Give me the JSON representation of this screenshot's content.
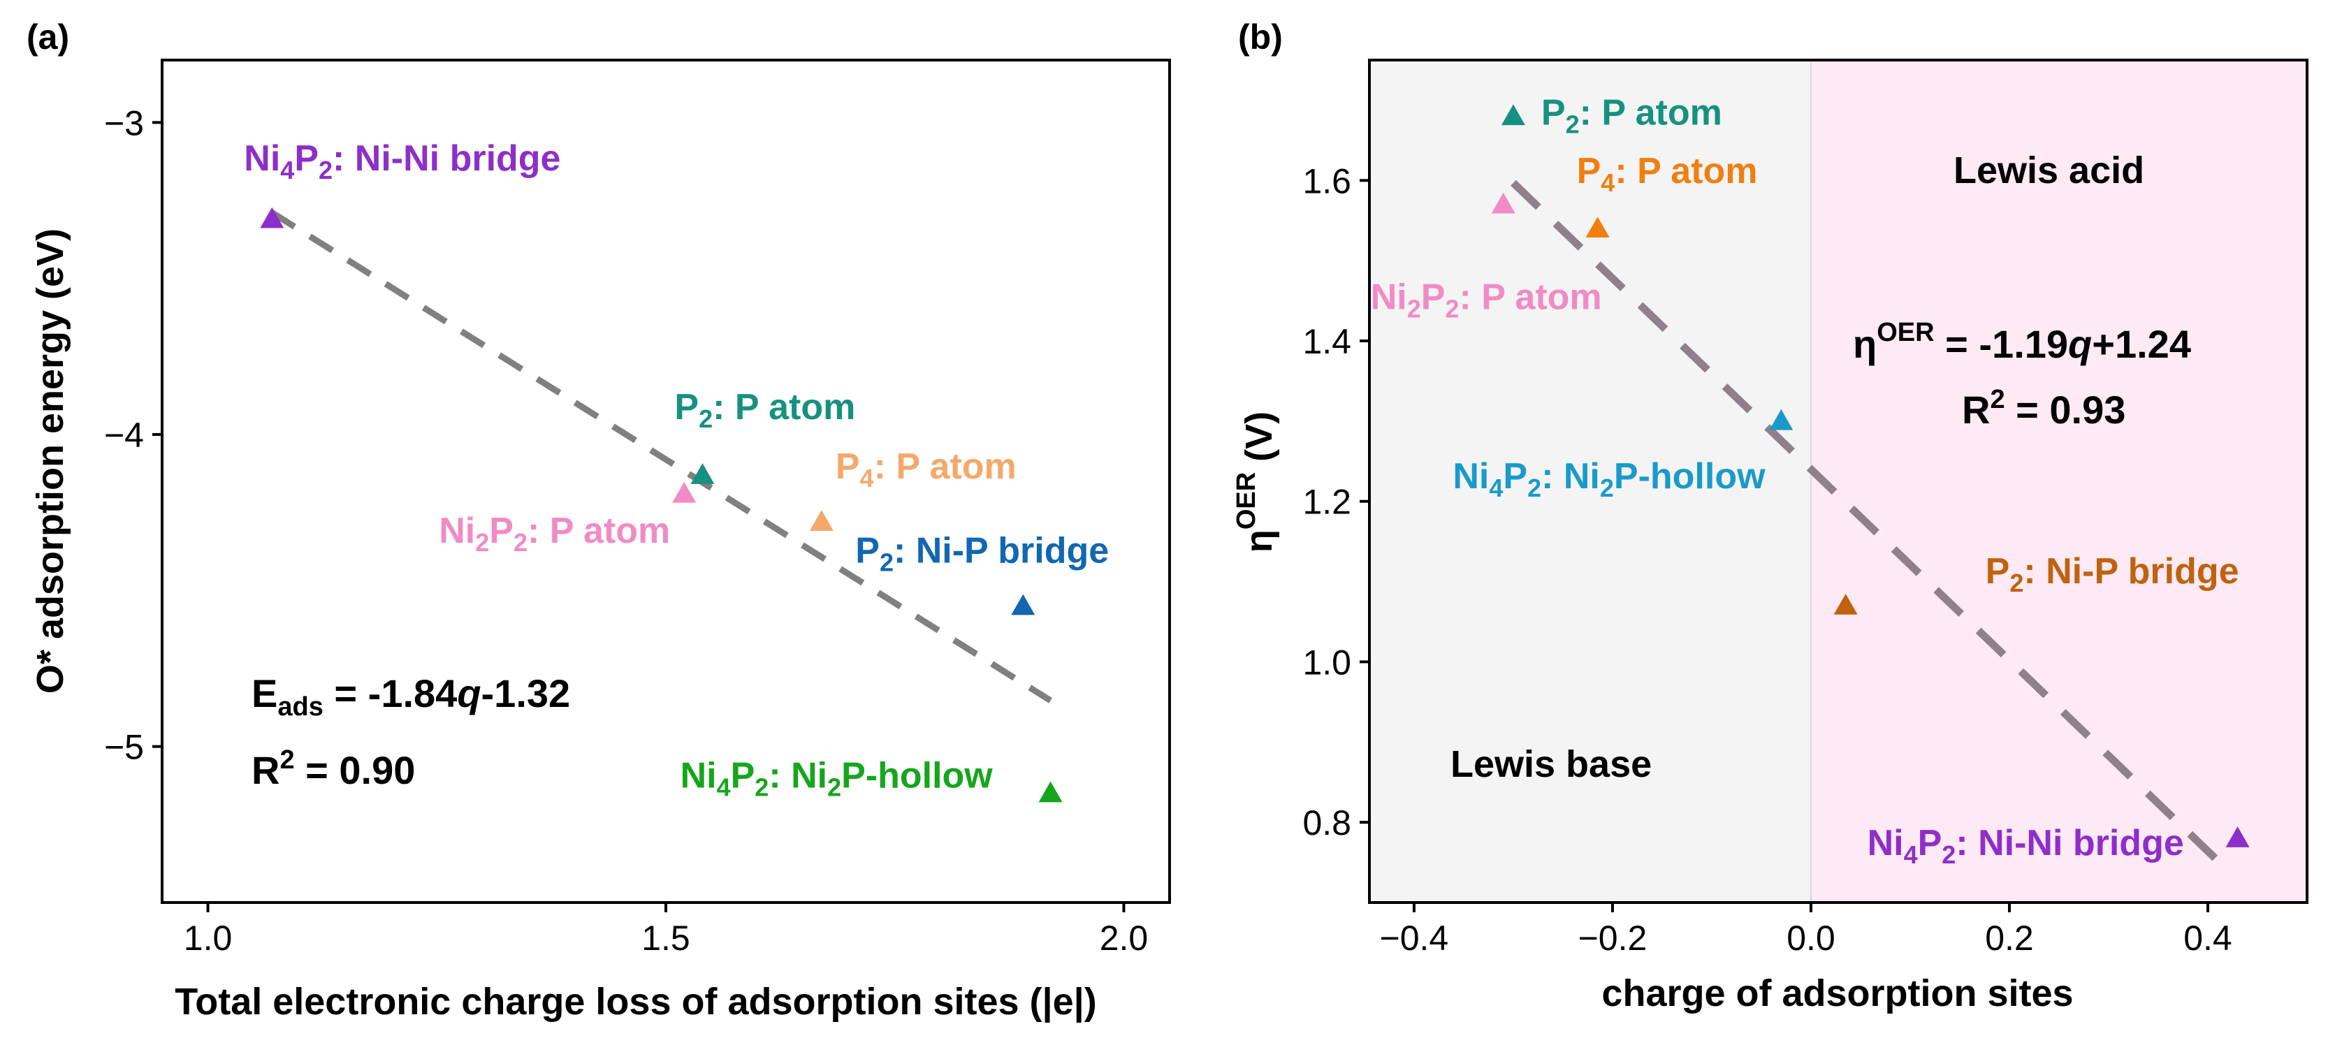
{
  "panels": {
    "a": {
      "label": "(a)",
      "equation": {
        "prefix": "E",
        "sub": "ads",
        "text": " = -1.84",
        "italic": "q",
        "suffix": "-1.32"
      },
      "r2": {
        "prefix": "R",
        "sup": "2",
        "text": " = 0.90"
      }
    },
    "b": {
      "label": "(b)",
      "equation": {
        "prefix": "η",
        "sup": "OER",
        "text": " = -1.19",
        "italic": "q",
        "suffix": "+1.24"
      },
      "r2": {
        "prefix": "R",
        "sup": "2",
        "text": " = 0.93"
      },
      "regions": {
        "left": "Lewis base",
        "right": "Lewis acid"
      }
    }
  },
  "chart_data": [
    {
      "type": "scatter",
      "panel": "a",
      "xlabel": "Total electronic charge loss of adsorption sites (|e|)",
      "ylabel": "O* adsorption energy (eV)",
      "xlim": [
        0.95,
        2.05
      ],
      "ylim": [
        -5.5,
        -2.8
      ],
      "xticks": [
        "1.0",
        "1.5",
        "2.0"
      ],
      "xtick_values": [
        1.0,
        1.5,
        2.0
      ],
      "yticks": [
        "−3",
        "−4",
        "−5"
      ],
      "ytick_values": [
        -3,
        -4,
        -5
      ],
      "points": [
        {
          "name": "Ni4P2: Ni-Ni bridge",
          "x": 1.07,
          "y": -3.31,
          "color": "#8e2ec8",
          "label": {
            "parts": [
              {
                "t": "Ni"
              },
              {
                "t": "4",
                "sub": true
              },
              {
                "t": "P"
              },
              {
                "t": "2",
                "sub": true
              },
              {
                "t": ": Ni-Ni bridge"
              }
            ]
          }
        },
        {
          "name": "P2: P atom",
          "x": 1.54,
          "y": -4.13,
          "color": "#17917f",
          "label": {
            "parts": [
              {
                "t": "P"
              },
              {
                "t": "2",
                "sub": true
              },
              {
                "t": ": P atom"
              }
            ]
          }
        },
        {
          "name": "Ni2P2: P atom",
          "x": 1.52,
          "y": -4.19,
          "color": "#f08bc5",
          "label": {
            "parts": [
              {
                "t": "Ni"
              },
              {
                "t": "2",
                "sub": true
              },
              {
                "t": "P"
              },
              {
                "t": "2",
                "sub": true
              },
              {
                "t": ": P atom"
              }
            ]
          }
        },
        {
          "name": "P4: P atom",
          "x": 1.67,
          "y": -4.28,
          "color": "#f5a86a",
          "label": {
            "parts": [
              {
                "t": "P"
              },
              {
                "t": "4",
                "sub": true
              },
              {
                "t": ": P atom"
              }
            ]
          }
        },
        {
          "name": "P2: Ni-P bridge",
          "x": 1.89,
          "y": -4.55,
          "color": "#1167b1",
          "label": {
            "parts": [
              {
                "t": "P"
              },
              {
                "t": "2",
                "sub": true
              },
              {
                "t": ": Ni-P bridge"
              }
            ]
          }
        },
        {
          "name": "Ni4P2: Ni2P-hollow",
          "x": 1.92,
          "y": -5.15,
          "color": "#16a51c",
          "label": {
            "parts": [
              {
                "t": "Ni"
              },
              {
                "t": "4",
                "sub": true
              },
              {
                "t": "P"
              },
              {
                "t": "2",
                "sub": true
              },
              {
                "t": ": Ni"
              },
              {
                "t": "2",
                "sub": true
              },
              {
                "t": "P-hollow"
              }
            ]
          }
        }
      ],
      "fit": {
        "slope": -1.84,
        "intercept": -1.32,
        "x_range": [
          1.07,
          1.92
        ],
        "color": "#808080"
      }
    },
    {
      "type": "scatter",
      "panel": "b",
      "xlabel": "charge of adsorption sites",
      "ylabel": "η^OER (V)",
      "ylabel_parts": {
        "prefix": "η",
        "sup": "OER",
        "suffix": " (V)"
      },
      "xlim": [
        -0.445,
        0.5
      ],
      "ylim": [
        0.7,
        1.75
      ],
      "xticks": [
        "−0.4",
        "−0.2",
        "0.0",
        "0.2",
        "0.4"
      ],
      "xtick_values": [
        -0.4,
        -0.2,
        0.0,
        0.2,
        0.4
      ],
      "yticks": [
        "0.8",
        "1.0",
        "1.2",
        "1.4",
        "1.6"
      ],
      "ytick_values": [
        0.8,
        1.0,
        1.2,
        1.4,
        1.6
      ],
      "points": [
        {
          "name": "P2: P atom",
          "x": -0.3,
          "y": 1.68,
          "color": "#17917f",
          "label": {
            "parts": [
              {
                "t": "P"
              },
              {
                "t": "2",
                "sub": true
              },
              {
                "t": ": P atom"
              }
            ]
          }
        },
        {
          "name": "Ni2P2: P atom",
          "x": -0.31,
          "y": 1.57,
          "color": "#f08bc5",
          "label": {
            "parts": [
              {
                "t": "Ni"
              },
              {
                "t": "2",
                "sub": true
              },
              {
                "t": "P"
              },
              {
                "t": "2",
                "sub": true
              },
              {
                "t": ": P atom"
              }
            ]
          }
        },
        {
          "name": "P4: P atom",
          "x": -0.215,
          "y": 1.54,
          "color": "#f07f10",
          "label": {
            "parts": [
              {
                "t": "P"
              },
              {
                "t": "4",
                "sub": true
              },
              {
                "t": ": P atom"
              }
            ]
          }
        },
        {
          "name": "Ni4P2: Ni2P-hollow",
          "x": -0.03,
          "y": 1.3,
          "color": "#1a9ac9",
          "label": {
            "parts": [
              {
                "t": "Ni"
              },
              {
                "t": "4",
                "sub": true
              },
              {
                "t": "P"
              },
              {
                "t": "2",
                "sub": true
              },
              {
                "t": ": Ni"
              },
              {
                "t": "2",
                "sub": true
              },
              {
                "t": "P-hollow"
              }
            ]
          }
        },
        {
          "name": "P2: Ni-P bridge",
          "x": 0.035,
          "y": 1.07,
          "color": "#c0620e",
          "label": {
            "parts": [
              {
                "t": "P"
              },
              {
                "t": "2",
                "sub": true
              },
              {
                "t": ": Ni-P bridge"
              }
            ]
          }
        },
        {
          "name": "Ni4P2: Ni-Ni bridge",
          "x": 0.43,
          "y": 0.78,
          "color": "#8e2ec8",
          "label": {
            "parts": [
              {
                "t": "Ni"
              },
              {
                "t": "4",
                "sub": true
              },
              {
                "t": "P"
              },
              {
                "t": "2",
                "sub": true
              },
              {
                "t": ": Ni-Ni bridge"
              }
            ]
          }
        }
      ],
      "fit": {
        "slope": -1.19,
        "intercept": 1.24,
        "x_range": [
          -0.3,
          0.41
        ],
        "color": "#8f8089"
      },
      "regions": [
        {
          "x_range": [
            -0.445,
            0.0
          ],
          "color": "#f4f4f4"
        },
        {
          "x_range": [
            0.0,
            0.5
          ],
          "color": "#fdeaf4"
        }
      ]
    }
  ]
}
